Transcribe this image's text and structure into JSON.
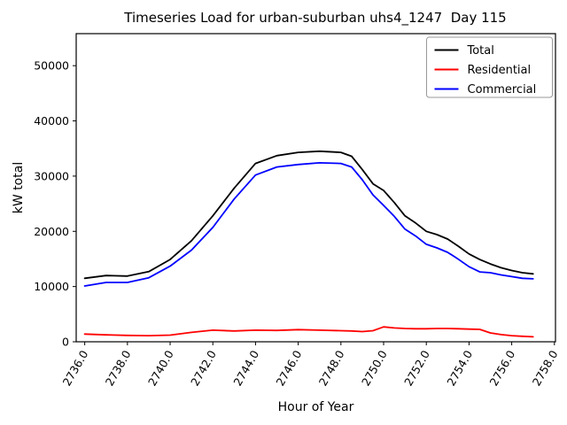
{
  "chart_data": {
    "type": "line",
    "title": "Timeseries Load for urban-suburban uhs4_1247  Day 115",
    "xlabel": "Hour of Year",
    "ylabel": "kW total",
    "grid": false,
    "xlim": [
      2735.6,
      2758.05
    ],
    "ylim": [
      0,
      55800
    ],
    "xtick_values": [
      2736,
      2738,
      2740,
      2742,
      2744,
      2746,
      2748,
      2750,
      2752,
      2754,
      2756,
      2758
    ],
    "xtick_labels": [
      "2736.0",
      "2738.0",
      "2740.0",
      "2742.0",
      "2744.0",
      "2746.0",
      "2748.0",
      "2750.0",
      "2752.0",
      "2754.0",
      "2756.0",
      "2758.0"
    ],
    "x_tick_rotation_deg": 60,
    "ytick_values": [
      0,
      10000,
      20000,
      30000,
      40000,
      50000
    ],
    "ytick_labels": [
      "0",
      "10000",
      "20000",
      "30000",
      "40000",
      "50000"
    ],
    "legend": {
      "position": "upper right",
      "entries": [
        "Total",
        "Residential",
        "Commercial"
      ]
    },
    "x": [
      2736,
      2737,
      2738,
      2739,
      2740,
      2741,
      2742,
      2743,
      2744,
      2745,
      2746,
      2747,
      2748,
      2748.5,
      2749,
      2749.5,
      2750,
      2750.5,
      2751,
      2751.5,
      2752,
      2752.5,
      2753,
      2753.5,
      2754,
      2754.5,
      2755,
      2755.5,
      2756,
      2756.5,
      2757
    ],
    "series": [
      {
        "name": "Total",
        "color": "#000000",
        "values": [
          11500,
          12000,
          11900,
          12700,
          14900,
          18300,
          22800,
          27800,
          32300,
          33700,
          34300,
          34500,
          34300,
          33600,
          31200,
          28600,
          27400,
          25200,
          22800,
          21500,
          20000,
          19400,
          18600,
          17300,
          15900,
          14900,
          14100,
          13400,
          12900,
          12500,
          12300
        ]
      },
      {
        "name": "Residential",
        "color": "#ff0000",
        "values": [
          1400,
          1250,
          1150,
          1100,
          1200,
          1700,
          2100,
          1950,
          2100,
          2050,
          2200,
          2100,
          2000,
          1950,
          1850,
          2000,
          2700,
          2500,
          2400,
          2350,
          2350,
          2400,
          2400,
          2350,
          2300,
          2250,
          1600,
          1300,
          1100,
          1000,
          900
        ]
      },
      {
        "name": "Commercial",
        "color": "#0000ff",
        "values": [
          10100,
          10750,
          10750,
          11600,
          13700,
          16600,
          20700,
          25850,
          30200,
          31650,
          32100,
          32400,
          32300,
          31650,
          29350,
          26600,
          24700,
          22700,
          20400,
          19150,
          17650,
          17000,
          16200,
          14950,
          13600,
          12650,
          12500,
          12100,
          11800,
          11500,
          11400
        ]
      }
    ]
  }
}
